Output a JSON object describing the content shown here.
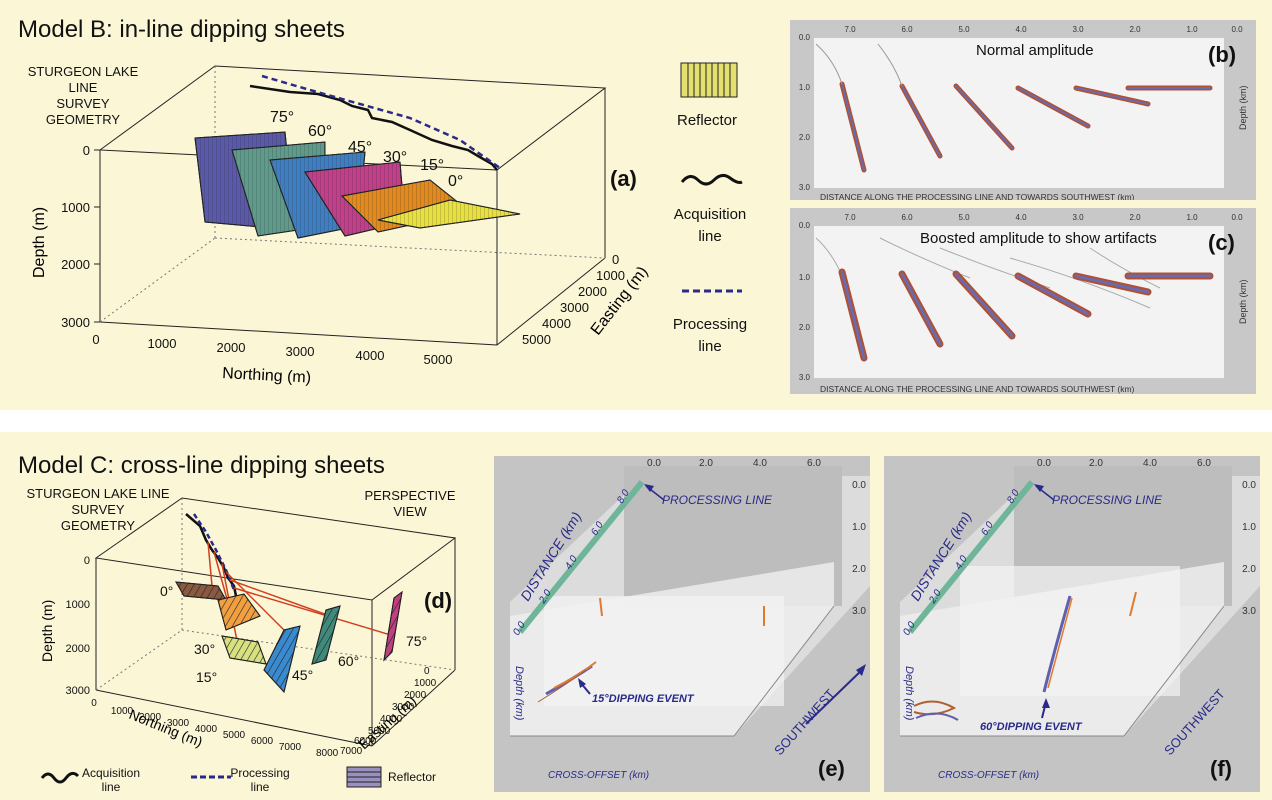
{
  "modelB": {
    "title": "Model B: in-line dipping sheets",
    "survey_label": [
      "STURGEON LAKE",
      "LINE",
      "SURVEY",
      "GEOMETRY"
    ],
    "angles": [
      "75°",
      "60°",
      "45°",
      "30°",
      "15°",
      "0°"
    ],
    "depth_axis": {
      "label": "Depth (m)",
      "ticks": [
        "0",
        "1000",
        "2000",
        "3000"
      ]
    },
    "northing_axis": {
      "label": "Northing (m)",
      "ticks": [
        "0",
        "1000",
        "2000",
        "3000",
        "4000",
        "5000"
      ]
    },
    "easting_axis": {
      "label": "Easting (m)",
      "ticks": [
        "0",
        "1000",
        "2000",
        "3000",
        "4000",
        "5000"
      ]
    },
    "panel_letter": "(a)",
    "legend": {
      "reflector": "Reflector",
      "acquisition": [
        "Acquisition",
        "line"
      ],
      "processing": [
        "Processing",
        "line"
      ]
    },
    "colors": [
      "#5a5aa8",
      "#5f9a8a",
      "#3f7ec0",
      "#c0408a",
      "#e08a20",
      "#e8e040"
    ]
  },
  "sectionB": {
    "letter": "(b)",
    "title": "Normal amplitude",
    "x_ticks": [
      "7.0",
      "6.0",
      "5.0",
      "4.0",
      "3.0",
      "2.0",
      "1.0",
      "0.0"
    ],
    "y_ticks": [
      "0.0",
      "1.0",
      "2.0",
      "3.0"
    ],
    "xlabel": "DISTANCE ALONG THE PROCESSING LINE AND TOWARDS SOUTHWEST (km)",
    "ylabel": "Depth (km)"
  },
  "sectionC": {
    "letter": "(c)",
    "title": "Boosted amplitude to show artifacts",
    "x_ticks": [
      "7.0",
      "6.0",
      "5.0",
      "4.0",
      "3.0",
      "2.0",
      "1.0",
      "0.0"
    ],
    "y_ticks": [
      "0.0",
      "1.0",
      "2.0",
      "3.0"
    ],
    "xlabel": "DISTANCE ALONG THE PROCESSING LINE AND TOWARDS SOUTHWEST (km)",
    "ylabel": "Depth (km)"
  },
  "modelC": {
    "title": "Model C: cross-line dipping sheets",
    "survey_label": [
      "STURGEON LAKE LINE",
      "SURVEY",
      "GEOMETRY"
    ],
    "perspective": [
      "PERSPECTIVE",
      "VIEW"
    ],
    "angles": [
      "0°",
      "30°",
      "15°",
      "45°",
      "60°",
      "75°"
    ],
    "depth_axis": {
      "label": "Depth (m)",
      "ticks": [
        "0",
        "1000",
        "2000",
        "3000"
      ]
    },
    "northing_axis": {
      "label": "Northing (m)",
      "ticks": [
        "0",
        "1000",
        "2000",
        "3000",
        "4000",
        "5000",
        "6000",
        "7000"
      ]
    },
    "easting_axis": {
      "label": "Easting (m)",
      "ticks": [
        "0",
        "1000",
        "2000",
        "3000",
        "4000",
        "5000",
        "6000",
        "7000",
        "8000"
      ]
    },
    "panel_letter": "(d)",
    "legend": {
      "acquisition": [
        "Acquisition",
        "line"
      ],
      "processing": [
        "Processing",
        "line"
      ],
      "reflector": "Reflector"
    }
  },
  "panelE": {
    "letter": "(e)",
    "top_ticks": [
      "0.0",
      "2.0",
      "4.0",
      "6.0"
    ],
    "depth_ticks": [
      "0.0",
      "1.0",
      "2.0",
      "3.0"
    ],
    "distance_label": "DISTANCE (km)",
    "distance_ticks": [
      "0.0",
      "2.0",
      "4.0",
      "6.0",
      "8.0"
    ],
    "processing_line": "PROCESSING LINE",
    "event": "15°DIPPING EVENT",
    "depth_label": "Depth (km)",
    "cross_offset": "CROSS-OFFSET (km)",
    "southwest": "SOUTHWEST"
  },
  "panelF": {
    "letter": "(f)",
    "top_ticks": [
      "0.0",
      "2.0",
      "4.0",
      "6.0"
    ],
    "depth_ticks": [
      "0.0",
      "1.0",
      "2.0",
      "3.0"
    ],
    "distance_label": "DISTANCE (km)",
    "distance_ticks": [
      "0.0",
      "2.0",
      "4.0",
      "6.0",
      "8.0"
    ],
    "processing_line": "PROCESSING LINE",
    "event": "60°DIPPING EVENT",
    "depth_label": "Depth (km)",
    "cross_offset": "CROSS-OFFSET (km)",
    "southwest": "SOUTHWEST"
  }
}
